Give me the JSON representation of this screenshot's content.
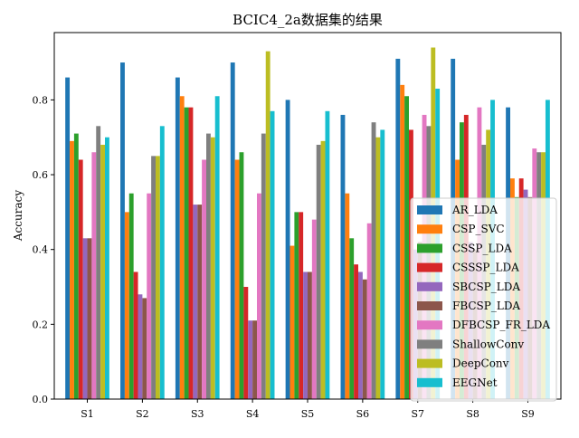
{
  "chart_data": {
    "type": "bar",
    "title": "BCIC4_2a数据集的结果",
    "xlabel": "",
    "ylabel": "Accuracy",
    "ylim": [
      0,
      0.98
    ],
    "yticks": [
      "0.0",
      "0.2",
      "0.4",
      "0.6",
      "0.8"
    ],
    "grid": false,
    "legend_position": "lower-right",
    "categories": [
      "S1",
      "S2",
      "S3",
      "S4",
      "S5",
      "S6",
      "S7",
      "S8",
      "S9"
    ],
    "series": [
      {
        "name": "AR_LDA",
        "color": "#1f77b4",
        "values": [
          0.86,
          0.9,
          0.86,
          0.9,
          0.8,
          0.76,
          0.91,
          0.91,
          0.78
        ]
      },
      {
        "name": "CSP_SVC",
        "color": "#ff7f0e",
        "values": [
          0.69,
          0.5,
          0.81,
          0.64,
          0.41,
          0.55,
          0.84,
          0.64,
          0.59
        ]
      },
      {
        "name": "CSSP_LDA",
        "color": "#2ca02c",
        "values": [
          0.71,
          0.55,
          0.78,
          0.66,
          0.5,
          0.43,
          0.81,
          0.74,
          0.54
        ]
      },
      {
        "name": "CSSSP_LDA",
        "color": "#d62728",
        "values": [
          0.64,
          0.34,
          0.78,
          0.3,
          0.5,
          0.36,
          0.72,
          0.76,
          0.59
        ]
      },
      {
        "name": "SBCSP_LDA",
        "color": "#9467bd",
        "values": [
          0.43,
          0.28,
          0.52,
          0.21,
          0.34,
          0.34,
          0.4,
          0.42,
          0.56
        ]
      },
      {
        "name": "FBCSP_LDA",
        "color": "#8c564b",
        "values": [
          0.43,
          0.27,
          0.52,
          0.21,
          0.34,
          0.32,
          0.42,
          0.4,
          0.54
        ]
      },
      {
        "name": "DFBCSP_FR_LDA",
        "color": "#e377c2",
        "values": [
          0.66,
          0.55,
          0.64,
          0.55,
          0.48,
          0.47,
          0.76,
          0.78,
          0.67
        ]
      },
      {
        "name": "ShallowConv",
        "color": "#7f7f7f",
        "values": [
          0.73,
          0.65,
          0.71,
          0.71,
          0.68,
          0.74,
          0.73,
          0.68,
          0.66
        ]
      },
      {
        "name": "DeepConv",
        "color": "#bcbd22",
        "values": [
          0.68,
          0.65,
          0.7,
          0.93,
          0.69,
          0.7,
          0.94,
          0.72,
          0.66
        ]
      },
      {
        "name": "EEGNet",
        "color": "#17becf",
        "values": [
          0.7,
          0.73,
          0.81,
          0.77,
          0.77,
          0.72,
          0.83,
          0.8,
          0.8
        ]
      }
    ]
  }
}
